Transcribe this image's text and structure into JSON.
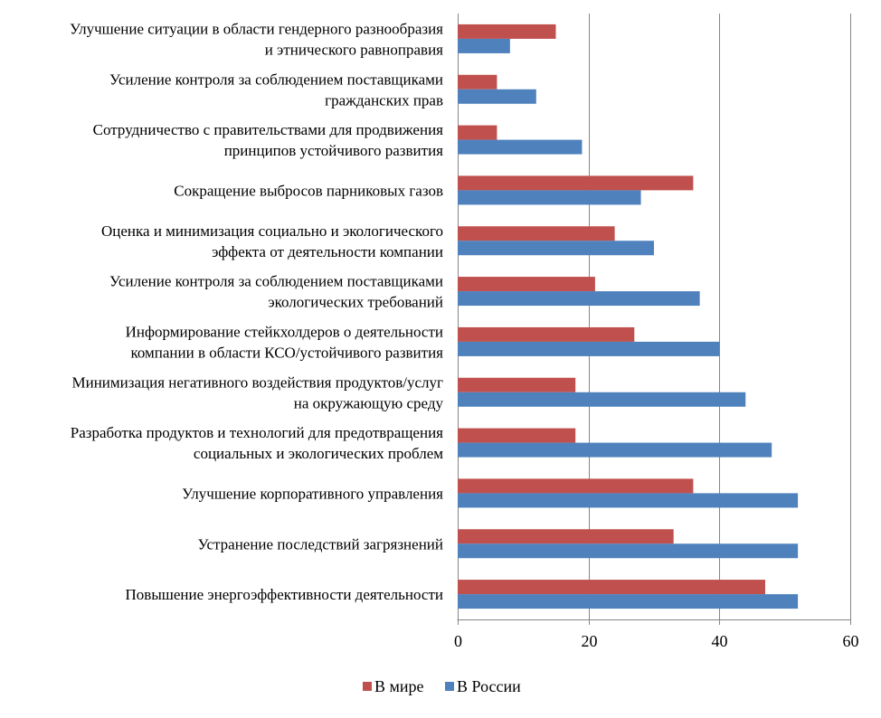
{
  "chart_data": {
    "type": "bar",
    "orientation": "horizontal",
    "categories": [
      [
        "Улучшение ситуации в области гендерного разнообразия",
        "и этнического равноправия"
      ],
      [
        "Усиление контроля за соблюдением поставщиками",
        "гражданских прав"
      ],
      [
        "Сотрудничество с правительствами для продвижения",
        "принципов устойчивого развития"
      ],
      [
        "Сокращение выбросов парниковых газов"
      ],
      [
        "Оценка и минимизация социально и экологического",
        "эффекта от деятельности компании"
      ],
      [
        "Усиление контроля за соблюдением поставщиками",
        "экологических требований"
      ],
      [
        "Информирование стейкхолдеров о деятельности",
        "компании в области КСО/устойчивого развития"
      ],
      [
        "Минимизация негативного воздействия продуктов/услуг",
        "на окружающую среду"
      ],
      [
        "Разработка продуктов и технологий для предотвращения",
        "социальных и экологических проблем"
      ],
      [
        "Улучшение корпоративного управления"
      ],
      [
        "Устранение последствий загрязнений"
      ],
      [
        "Повышение энергоэффективности деятельности"
      ]
    ],
    "series": [
      {
        "name": "В мире",
        "color": "#c0504d",
        "values": [
          15,
          6,
          6,
          36,
          24,
          21,
          27,
          18,
          18,
          36,
          33,
          47
        ]
      },
      {
        "name": "В России",
        "color": "#4f81bd",
        "values": [
          8,
          12,
          19,
          28,
          30,
          37,
          40,
          44,
          48,
          52,
          52,
          52
        ]
      }
    ],
    "xlim": [
      0,
      60
    ],
    "xticks": [
      0,
      20,
      40,
      60
    ],
    "grid": true,
    "legend": "bottom-center",
    "title": "",
    "xlabel": "",
    "ylabel": ""
  }
}
